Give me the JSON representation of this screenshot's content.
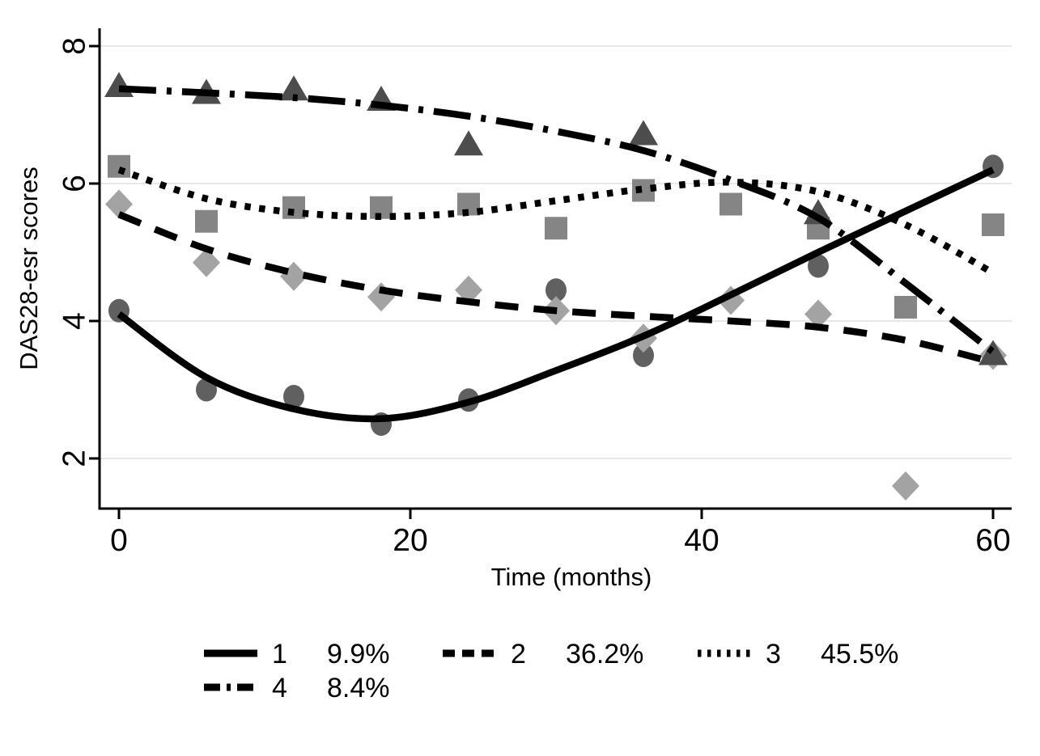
{
  "figure": {
    "background": "#ffffff",
    "description": "Latent trajectory classes of DAS28-esr scores over 60 months with observed class means (markers) and fitted curves (lines)"
  },
  "axes": {
    "y": {
      "label": "DAS28-esr scores",
      "ticks": [
        8,
        6,
        4,
        2
      ],
      "orientation_tick_labels": "rotated-90"
    },
    "x": {
      "label": "Time (months)",
      "ticks": [
        0,
        20,
        40,
        60
      ]
    }
  },
  "legend": {
    "position": "bottom",
    "rows": [
      [
        0,
        1,
        2
      ],
      [
        3
      ]
    ],
    "items": [
      {
        "label": "1",
        "share": "9.9%",
        "line_style": "solid"
      },
      {
        "label": "2",
        "share": "36.2%",
        "line_style": "dashed"
      },
      {
        "label": "3",
        "share": "45.5%",
        "line_style": "dotted"
      },
      {
        "label": "4",
        "share": "8.4%",
        "line_style": "dashdot"
      }
    ]
  },
  "chart_data": {
    "type": "line",
    "title": "",
    "xlabel": "Time (months)",
    "ylabel": "DAS28-esr scores",
    "xlim": [
      0,
      60
    ],
    "ylim": [
      1.3,
      8.3
    ],
    "x_tick_values": [
      0,
      20,
      40,
      60
    ],
    "y_tick_values": [
      2,
      4,
      6,
      8
    ],
    "grid": "horizontal-only",
    "x_months": [
      0,
      6,
      12,
      18,
      24,
      30,
      36,
      42,
      48,
      54,
      60
    ],
    "series": [
      {
        "id": "class-1",
        "legend_label": "1",
        "share": "9.9%",
        "line_style": "solid",
        "line_color": "#000000",
        "marker": "circle",
        "marker_color": "#606060",
        "fitted_line": [
          4.1,
          3.18,
          2.72,
          2.58,
          2.82,
          3.28,
          3.78,
          4.38,
          5.0,
          5.6,
          6.2
        ],
        "observed_points": [
          [
            0,
            4.15
          ],
          [
            6,
            3.0
          ],
          [
            12,
            2.9
          ],
          [
            18,
            2.5
          ],
          [
            24,
            2.85
          ],
          [
            30,
            4.45
          ],
          [
            36,
            3.5
          ],
          [
            48,
            4.8
          ],
          [
            60,
            6.25
          ]
        ]
      },
      {
        "id": "class-2",
        "legend_label": "2",
        "share": "36.2%",
        "line_style": "dashed",
        "line_color": "#000000",
        "marker": "diamond",
        "marker_color": "#a3a3a3",
        "fitted_line": [
          5.55,
          5.05,
          4.7,
          4.45,
          4.28,
          4.15,
          4.07,
          4.0,
          3.91,
          3.72,
          3.4
        ],
        "observed_points": [
          [
            0,
            5.7
          ],
          [
            6,
            4.85
          ],
          [
            12,
            4.65
          ],
          [
            18,
            4.35
          ],
          [
            24,
            4.45
          ],
          [
            30,
            4.15
          ],
          [
            36,
            3.75
          ],
          [
            42,
            4.3
          ],
          [
            48,
            4.1
          ],
          [
            54,
            1.6
          ],
          [
            60,
            3.5
          ]
        ]
      },
      {
        "id": "class-3",
        "legend_label": "3",
        "share": "45.5%",
        "line_style": "dotted",
        "line_color": "#000000",
        "marker": "square",
        "marker_color": "#858585",
        "fitted_line": [
          6.2,
          5.78,
          5.58,
          5.52,
          5.58,
          5.75,
          5.92,
          6.02,
          5.88,
          5.4,
          4.7
        ],
        "observed_points": [
          [
            0,
            6.25
          ],
          [
            6,
            5.45
          ],
          [
            12,
            5.65
          ],
          [
            18,
            5.65
          ],
          [
            24,
            5.7
          ],
          [
            30,
            5.35
          ],
          [
            36,
            5.9
          ],
          [
            42,
            5.7
          ],
          [
            48,
            5.35
          ],
          [
            54,
            4.2
          ],
          [
            60,
            5.4
          ]
        ]
      },
      {
        "id": "class-4",
        "legend_label": "4",
        "share": "8.4%",
        "line_style": "dashdot",
        "line_color": "#000000",
        "marker": "triangle",
        "marker_color": "#4d4d4d",
        "fitted_line": [
          7.38,
          7.32,
          7.25,
          7.14,
          6.98,
          6.76,
          6.48,
          6.05,
          5.5,
          4.55,
          3.55
        ],
        "observed_points": [
          [
            0,
            7.4
          ],
          [
            6,
            7.3
          ],
          [
            12,
            7.35
          ],
          [
            18,
            7.2
          ],
          [
            24,
            6.55
          ],
          [
            36,
            6.7
          ],
          [
            48,
            5.55
          ],
          [
            60,
            3.5
          ]
        ]
      }
    ],
    "colors": {
      "axis": "#000000",
      "grid": "#e7e7e7",
      "text": "#000000",
      "background": "#ffffff"
    }
  }
}
